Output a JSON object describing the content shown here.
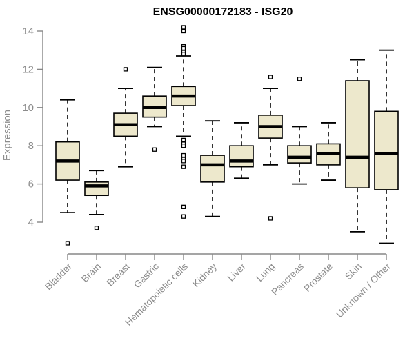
{
  "chart_data": {
    "type": "boxplot",
    "title": "ENSG00000172183 - ISG20",
    "ylabel": "Expression",
    "xlabel": "",
    "ylim": [
      4,
      14
    ],
    "yticks": [
      4,
      6,
      8,
      10,
      12,
      14
    ],
    "grid": false,
    "legend": "none",
    "categories": [
      "Bladder",
      "Brain",
      "Breast",
      "Gastric",
      "Hematopoietic cells",
      "Kidney",
      "Liver",
      "Lung",
      "Pancreas",
      "Prostate",
      "Skin",
      "Unknown / Other"
    ],
    "series": [
      {
        "category": "Bladder",
        "whisker_low": 4.5,
        "q1": 6.2,
        "median": 7.2,
        "q3": 8.2,
        "whisker_high": 10.4,
        "outliers": [
          2.9
        ]
      },
      {
        "category": "Brain",
        "whisker_low": 4.4,
        "q1": 5.4,
        "median": 5.9,
        "q3": 6.1,
        "whisker_high": 6.7,
        "outliers": [
          3.7
        ]
      },
      {
        "category": "Breast",
        "whisker_low": 6.9,
        "q1": 8.5,
        "median": 9.1,
        "q3": 9.7,
        "whisker_high": 11.0,
        "outliers": [
          12.0
        ]
      },
      {
        "category": "Gastric",
        "whisker_low": 9.0,
        "q1": 9.5,
        "median": 10.0,
        "q3": 10.6,
        "whisker_high": 12.1,
        "outliers": [
          7.8
        ]
      },
      {
        "category": "Hematopoietic cells",
        "whisker_low": 8.5,
        "q1": 10.1,
        "median": 10.6,
        "q3": 11.1,
        "whisker_high": 12.7,
        "outliers": [
          14.2,
          14.0,
          13.2,
          13.1,
          12.9,
          12.8,
          8.3,
          8.1,
          8.0,
          7.5,
          7.3,
          7.2,
          6.9,
          4.8,
          4.3
        ]
      },
      {
        "category": "Kidney",
        "whisker_low": 4.3,
        "q1": 6.1,
        "median": 7.0,
        "q3": 7.5,
        "whisker_high": 9.3,
        "outliers": []
      },
      {
        "category": "Liver",
        "whisker_low": 6.3,
        "q1": 6.9,
        "median": 7.2,
        "q3": 8.0,
        "whisker_high": 9.2,
        "outliers": []
      },
      {
        "category": "Lung",
        "whisker_low": 7.0,
        "q1": 8.4,
        "median": 9.0,
        "q3": 9.6,
        "whisker_high": 11.0,
        "outliers": [
          11.6,
          4.2
        ]
      },
      {
        "category": "Pancreas",
        "whisker_low": 6.0,
        "q1": 7.1,
        "median": 7.4,
        "q3": 8.0,
        "whisker_high": 9.0,
        "outliers": [
          11.5
        ]
      },
      {
        "category": "Prostate",
        "whisker_low": 6.2,
        "q1": 7.0,
        "median": 7.6,
        "q3": 8.1,
        "whisker_high": 9.2,
        "outliers": []
      },
      {
        "category": "Skin",
        "whisker_low": 3.5,
        "q1": 5.8,
        "median": 7.4,
        "q3": 11.4,
        "whisker_high": 12.5,
        "outliers": []
      },
      {
        "category": "Unknown / Other",
        "whisker_low": 2.9,
        "q1": 5.7,
        "median": 7.6,
        "q3": 9.8,
        "whisker_high": 13.0,
        "outliers": []
      }
    ],
    "colors": {
      "box_fill": "#EDE8CC",
      "box_border": "#000000",
      "median": "#000000",
      "whisker": "#000000",
      "outlier_stroke": "#000000",
      "outlier_fill": "#ffffff",
      "axis_line": "#878787",
      "tick_text": "#8c8c8c",
      "title_text": "#000000",
      "background": "#ffffff"
    }
  }
}
